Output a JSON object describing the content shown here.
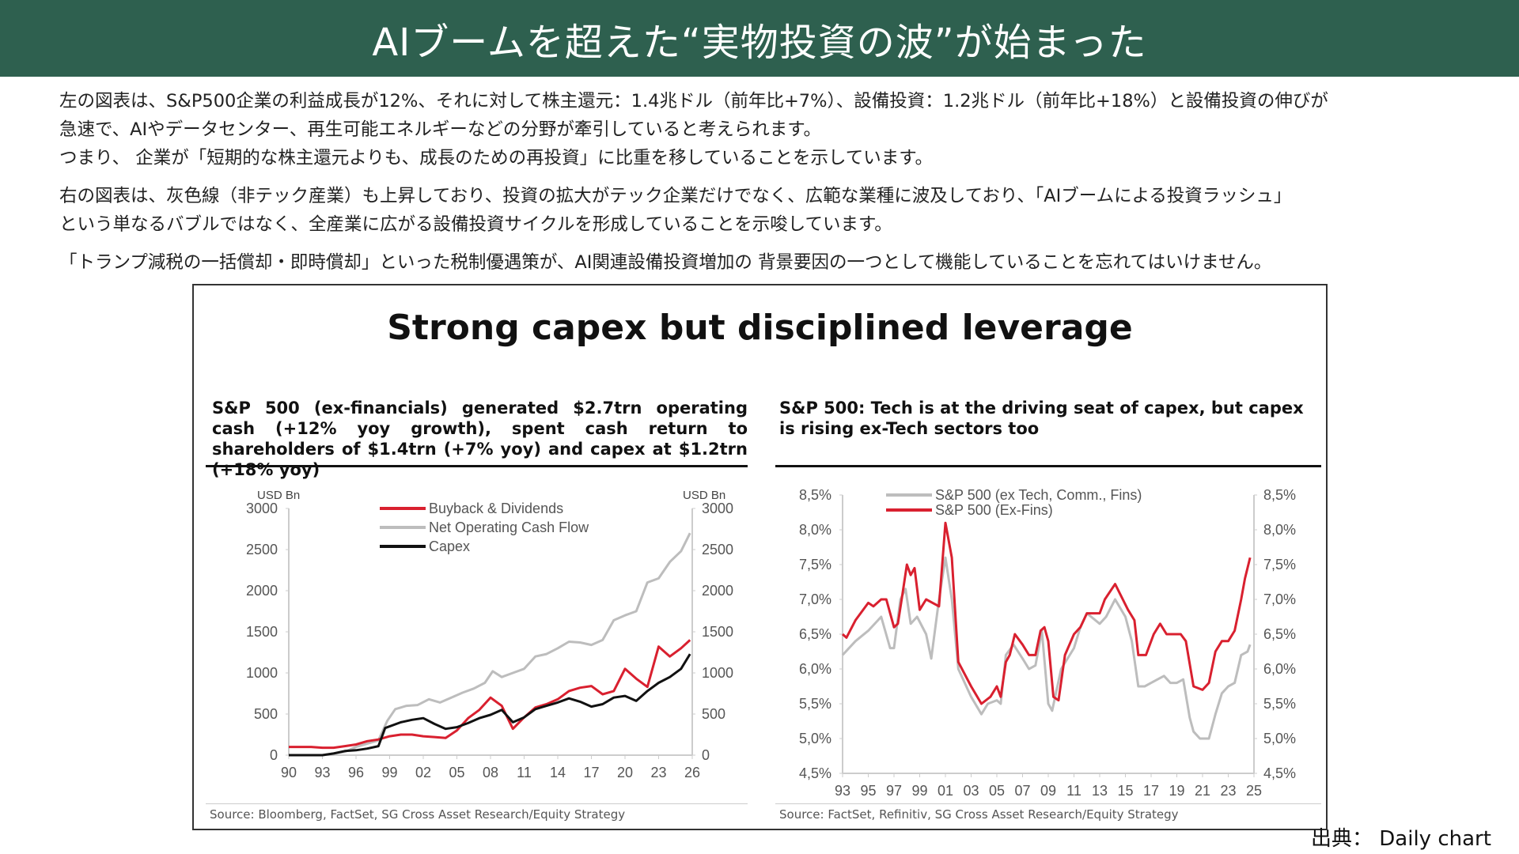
{
  "header": {
    "title": "AIブームを超えた“実物投資の波”が始まった"
  },
  "body": {
    "p1_line1": "左の図表は、S&P500企業の利益成長が12%、それに対して株主還元：1.4兆ドル（前年比+7%）、設備投資：1.2兆ドル（前年比+18%）と設備投資の伸びが",
    "p1_line2": "急速で、AIやデータセンター、再生可能エネルギーなどの分野が牽引していると考えられます。",
    "p1_line3": "つまり、 企業が「短期的な株主還元よりも、成長のための再投資」に比重を移していることを示しています。",
    "p2_line1": "右の図表は、灰色線（非テック産業）も上昇しており、投資の拡大がテック企業だけでなく、広範な業種に波及しており、「AIブームによる投資ラッシュ」",
    "p2_line2": "という単なるバブルではなく、全産業に広がる設備投資サイクルを形成していることを示唆しています。",
    "p3": "「トランプ減税の一括償却・即時償却」といった税制優遇策が、AI関連設備投資増加の 背景要因の一つとして機能していることを忘れてはいけません。"
  },
  "figure": {
    "title": "Strong capex but disciplined leverage",
    "credit": "出典： Daily chart"
  },
  "chart_data": [
    {
      "type": "line",
      "title": "S&P 500 (ex-financials) generated $2.7trn operating cash (+12% yoy growth), spent cash return to shareholders of $1.4trn (+7% yoy) and capex at $1.2trn (+18% yoy)",
      "ylabel_left": "USD Bn",
      "ylabel_right": "USD Bn",
      "ylim": [
        0,
        3000
      ],
      "yticks": [
        0,
        500,
        1000,
        1500,
        2000,
        2500,
        3000
      ],
      "xlim": [
        1990,
        2026
      ],
      "xticks": [
        "90",
        "93",
        "96",
        "99",
        "02",
        "05",
        "08",
        "11",
        "14",
        "17",
        "20",
        "23",
        "26"
      ],
      "legend_position": "top-center",
      "source": "Source: Bloomberg, FactSet, SG Cross Asset Research/Equity Strategy",
      "series": [
        {
          "name": "Net Operating Cash Flow",
          "color": "#bdbdbd",
          "x": [
            1990,
            1993,
            1995,
            1996,
            1997,
            1998,
            1998.8,
            1999.5,
            2000.5,
            2001.5,
            2002.5,
            2003.5,
            2004.5,
            2005.5,
            2006.5,
            2007.5,
            2008.2,
            2009,
            2010,
            2011,
            2012,
            2013,
            2014,
            2015,
            2016,
            2017,
            2018,
            2019,
            2020,
            2021,
            2022,
            2023,
            2024,
            2025,
            2025.8
          ],
          "y": [
            0,
            0,
            40,
            100,
            140,
            180,
            420,
            560,
            600,
            610,
            680,
            640,
            700,
            760,
            810,
            880,
            1020,
            950,
            1000,
            1050,
            1200,
            1230,
            1300,
            1380,
            1370,
            1340,
            1400,
            1640,
            1700,
            1750,
            2100,
            2150,
            2350,
            2480,
            2700
          ]
        },
        {
          "name": "Buyback & Dividends",
          "color": "#d9202f",
          "x": [
            1990,
            1992,
            1993,
            1994,
            1995,
            1996,
            1997,
            1998,
            1999,
            2000,
            2001,
            2002,
            2003,
            2004,
            2005,
            2006,
            2007,
            2008,
            2009,
            2010,
            2011,
            2012,
            2013,
            2014,
            2015,
            2016,
            2017,
            2018,
            2019,
            2020,
            2021,
            2022,
            2023,
            2024,
            2025,
            2025.8
          ],
          "y": [
            100,
            100,
            90,
            90,
            110,
            130,
            170,
            190,
            230,
            250,
            250,
            230,
            220,
            210,
            300,
            450,
            550,
            700,
            600,
            320,
            460,
            580,
            620,
            680,
            780,
            820,
            840,
            740,
            780,
            1050,
            930,
            830,
            1320,
            1200,
            1300,
            1400
          ]
        },
        {
          "name": "Capex",
          "color": "#111111",
          "x": [
            1990,
            1993,
            1994,
            1995,
            1996,
            1997,
            1998,
            1998.6,
            2000,
            2001,
            2002,
            2003,
            2004,
            2005,
            2006,
            2007,
            2008,
            2009,
            2010,
            2011,
            2012,
            2013,
            2014,
            2015,
            2016,
            2017,
            2018,
            2019,
            2020,
            2021,
            2022,
            2023,
            2024,
            2025,
            2025.8
          ],
          "y": [
            0,
            0,
            20,
            50,
            60,
            80,
            110,
            330,
            400,
            430,
            450,
            380,
            320,
            340,
            390,
            450,
            490,
            550,
            400,
            460,
            560,
            600,
            640,
            690,
            650,
            590,
            620,
            700,
            720,
            660,
            780,
            880,
            950,
            1050,
            1230
          ]
        }
      ]
    },
    {
      "type": "line",
      "title": "S&P 500: Tech is at the driving seat of capex, but capex is rising ex-Tech sectors too",
      "ylim": [
        4.5,
        8.5
      ],
      "yticks": [
        "4,5%",
        "5,0%",
        "5,5%",
        "6,0%",
        "6,5%",
        "7,0%",
        "7,5%",
        "8,0%",
        "8,5%"
      ],
      "xlim": [
        1993,
        2025
      ],
      "xticks": [
        "93",
        "95",
        "97",
        "99",
        "01",
        "03",
        "05",
        "07",
        "09",
        "11",
        "13",
        "15",
        "17",
        "19",
        "21",
        "23",
        "25"
      ],
      "legend_position": "top-left",
      "source": "Source: FactSet, Refinitiv, SG Cross Asset Research/Equity Strategy",
      "series": [
        {
          "name": "S&P 500 (ex Tech, Comm., Fins)",
          "color": "#bdbdbd",
          "x": [
            1993,
            1994,
            1995,
            1996,
            1996.7,
            1997,
            1997.5,
            1997.9,
            1998.3,
            1998.8,
            1999.5,
            1999.9,
            2000.5,
            2001,
            2001.5,
            2002,
            2003,
            2003.8,
            2004.3,
            2005,
            2005.3,
            2005.7,
            2006.3,
            2007,
            2007.5,
            2008,
            2008.5,
            2009,
            2009.3,
            2010,
            2011,
            2011.5,
            2012,
            2013,
            2013.5,
            2014.2,
            2015,
            2015.5,
            2016,
            2016.5,
            2017,
            2017.5,
            2018,
            2018.5,
            2019,
            2019.5,
            2020,
            2020.3,
            2020.8,
            2021.5,
            2022,
            2022.5,
            2023,
            2023.5,
            2024,
            2024.5,
            2024.7
          ],
          "y": [
            6.2,
            6.4,
            6.55,
            6.75,
            6.3,
            6.3,
            7.0,
            7.15,
            6.65,
            6.75,
            6.5,
            6.15,
            7.0,
            7.6,
            7.0,
            6.0,
            5.6,
            5.35,
            5.5,
            5.55,
            5.5,
            6.2,
            6.35,
            6.15,
            6.0,
            6.05,
            6.55,
            5.5,
            5.4,
            6.0,
            6.3,
            6.6,
            6.8,
            6.65,
            6.75,
            7.0,
            6.75,
            6.4,
            5.75,
            5.75,
            5.8,
            5.85,
            5.9,
            5.8,
            5.8,
            5.85,
            5.3,
            5.1,
            5.0,
            5.0,
            5.35,
            5.65,
            5.75,
            5.8,
            6.2,
            6.25,
            6.35
          ]
        },
        {
          "name": "S&P 500 (Ex-Fins)",
          "color": "#d9202f",
          "x": [
            1993,
            1993.3,
            1994,
            1995,
            1995.4,
            1996,
            1996.4,
            1997,
            1997.3,
            1997.6,
            1998,
            1998.3,
            1998.6,
            1999,
            1999.5,
            2000,
            2000.5,
            2001,
            2001.5,
            2002,
            2003,
            2003.8,
            2004.5,
            2005,
            2005.3,
            2005.7,
            2006,
            2006.4,
            2007,
            2007.5,
            2008,
            2008.4,
            2008.7,
            2009,
            2009.4,
            2009.8,
            2010.3,
            2011,
            2011.5,
            2012,
            2013,
            2013.4,
            2014.2,
            2015.2,
            2015.7,
            2016,
            2016.6,
            2017.2,
            2017.7,
            2018.2,
            2018.7,
            2019.3,
            2019.7,
            2020.3,
            2021,
            2021.5,
            2022,
            2022.5,
            2023,
            2023.5,
            2024,
            2024.3,
            2024.7
          ],
          "y": [
            6.5,
            6.45,
            6.7,
            6.95,
            6.9,
            7.0,
            7.0,
            6.6,
            6.65,
            7.0,
            7.5,
            7.35,
            7.45,
            6.85,
            7.0,
            6.95,
            6.9,
            8.1,
            7.6,
            6.1,
            5.75,
            5.5,
            5.6,
            5.75,
            5.6,
            6.1,
            6.2,
            6.5,
            6.35,
            6.2,
            6.2,
            6.55,
            6.6,
            6.4,
            5.6,
            5.55,
            6.2,
            6.5,
            6.6,
            6.8,
            6.8,
            7.0,
            7.22,
            6.85,
            6.7,
            6.2,
            6.2,
            6.5,
            6.65,
            6.5,
            6.5,
            6.5,
            6.4,
            5.75,
            5.7,
            5.8,
            6.25,
            6.4,
            6.4,
            6.55,
            7.0,
            7.3,
            7.6
          ]
        }
      ]
    }
  ]
}
